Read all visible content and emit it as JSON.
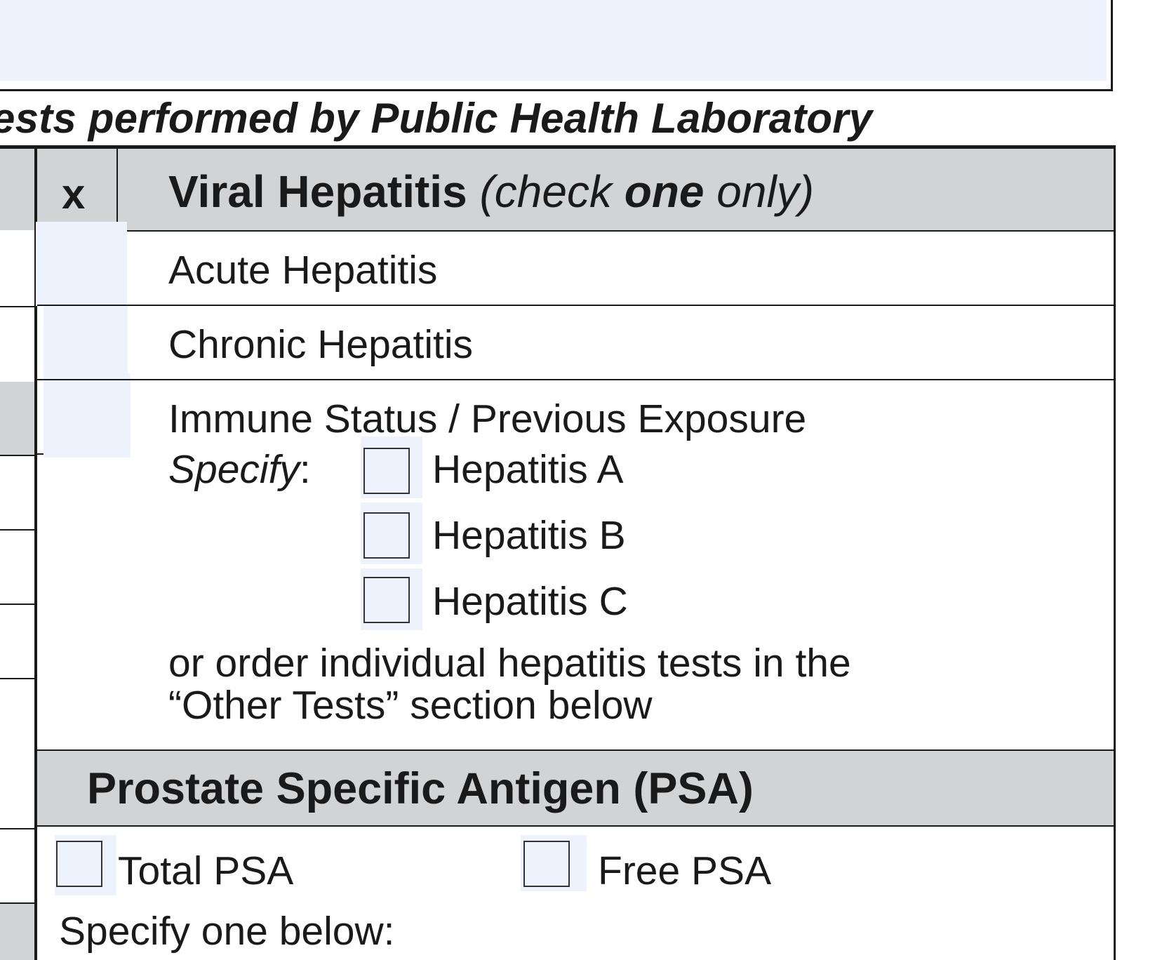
{
  "banner": "ests performed by Public Health Laboratory",
  "viral_hepatitis": {
    "column_header": "x",
    "title": "Viral Hepatitis",
    "note_open": "(check ",
    "note_bold": "one",
    "note_close": " only)",
    "options": {
      "acute": "Acute Hepatitis",
      "chronic": "Chronic Hepatitis",
      "immune": "Immune Status / Previous Exposure"
    },
    "specify_label": "Specify",
    "specify_colon": ":",
    "sub_options": {
      "a": "Hepatitis A",
      "b": "Hepatitis B",
      "c": "Hepatitis C"
    },
    "note_line1": "or order individual hepatitis tests in the",
    "note_line2": "“Other Tests” section below"
  },
  "psa": {
    "title": "Prostate Specific Antigen (PSA)",
    "total": "Total PSA",
    "free": "Free PSA",
    "specify": "Specify one below:"
  },
  "colors": {
    "header_fill": "#d2d3d5",
    "field_fill": "#eef2fd",
    "rule": "#1a1a1a"
  }
}
